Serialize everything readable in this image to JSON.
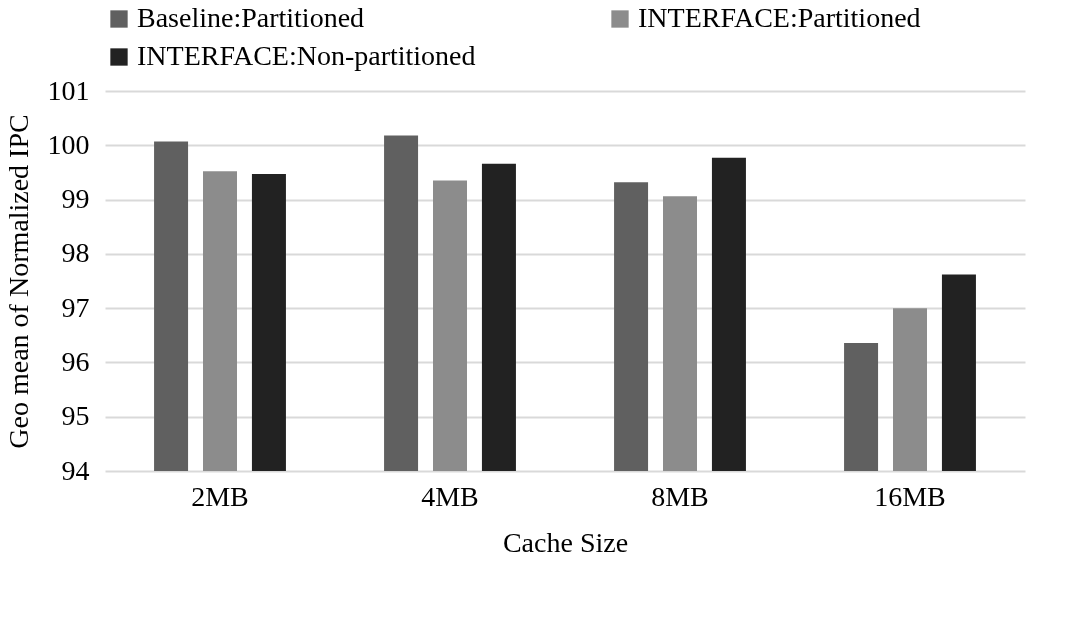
{
  "chart_data": {
    "type": "bar",
    "xlabel": "Cache Size",
    "ylabel": "Geo mean of Normalized IPC",
    "categories": [
      "2MB",
      "4MB",
      "8MB",
      "16MB"
    ],
    "series": [
      {
        "name": "Baseline:Partitioned",
        "color": "#606060",
        "values": [
          100.07,
          100.18,
          99.32,
          96.36
        ]
      },
      {
        "name": "INTERFACE:Partitioned",
        "color": "#8c8c8c",
        "values": [
          99.52,
          99.35,
          99.06,
          97.0
        ]
      },
      {
        "name": "INTERFACE:Non-partitioned",
        "color": "#222222",
        "values": [
          99.47,
          99.66,
          99.77,
          97.62
        ]
      }
    ],
    "ylim": [
      94,
      101
    ],
    "yticks": [
      94,
      95,
      96,
      97,
      98,
      99,
      100,
      101
    ],
    "grid": "y",
    "legend": "top"
  }
}
